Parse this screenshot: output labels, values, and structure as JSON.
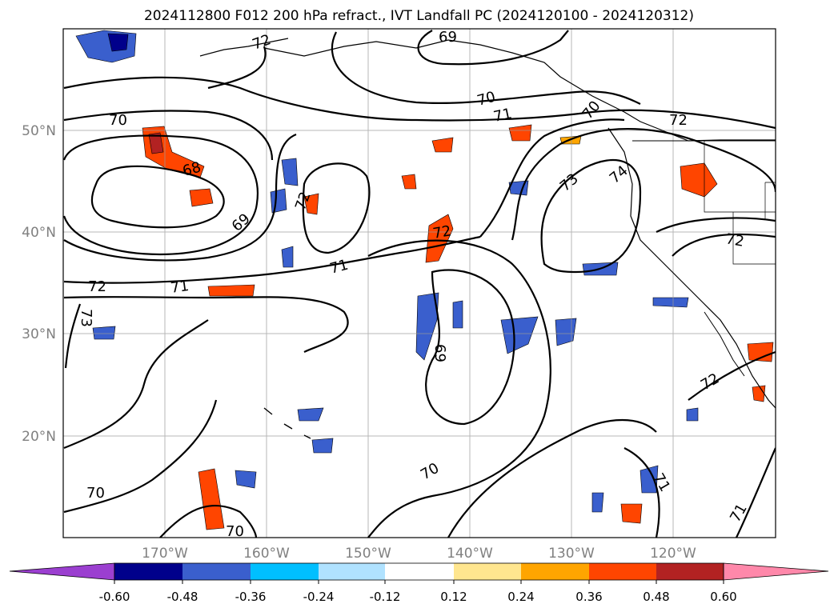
{
  "title": "2024112800 F012 200 hPa refract., IVT Landfall PC (2024120100 - 2024120312)",
  "map": {
    "lon_range": [
      -180,
      -110
    ],
    "lat_range": [
      10,
      60
    ],
    "lat_ticks": [
      {
        "value": 20,
        "label": "20°N"
      },
      {
        "value": 30,
        "label": "30°N"
      },
      {
        "value": 40,
        "label": "40°N"
      },
      {
        "value": 50,
        "label": "50°N"
      }
    ],
    "lon_ticks": [
      {
        "value": -170,
        "label": "170°W"
      },
      {
        "value": -160,
        "label": "160°W"
      },
      {
        "value": -150,
        "label": "150°W"
      },
      {
        "value": -140,
        "label": "140°W"
      },
      {
        "value": -130,
        "label": "130°W"
      },
      {
        "value": -120,
        "label": "120°W"
      }
    ],
    "contour_labels": [
      {
        "text": "69"
      },
      {
        "text": "72"
      },
      {
        "text": "70"
      },
      {
        "text": "70"
      },
      {
        "text": "71"
      },
      {
        "text": "72"
      },
      {
        "text": "68"
      },
      {
        "text": "72"
      },
      {
        "text": "69"
      },
      {
        "text": "73"
      },
      {
        "text": "74"
      },
      {
        "text": "72"
      },
      {
        "text": "72"
      },
      {
        "text": "71"
      },
      {
        "text": "72"
      },
      {
        "text": "71"
      },
      {
        "text": "73"
      },
      {
        "text": "69"
      },
      {
        "text": "72"
      },
      {
        "text": "70"
      },
      {
        "text": "71"
      },
      {
        "text": "70"
      },
      {
        "text": "71"
      },
      {
        "text": "70"
      },
      {
        "text": "70"
      }
    ]
  },
  "colorbar": {
    "ticks": [
      "-0.60",
      "-0.48",
      "-0.36",
      "-0.24",
      "-0.12",
      "0.12",
      "0.24",
      "0.36",
      "0.48",
      "0.60"
    ],
    "colors": [
      "#9b3fd0",
      "#00008b",
      "#3a5fcd",
      "#00bfff",
      "#b0e2ff",
      "#ffffff",
      "#ffe68f",
      "#ffa500",
      "#ff4500",
      "#b22222",
      "#ff88aa"
    ]
  }
}
